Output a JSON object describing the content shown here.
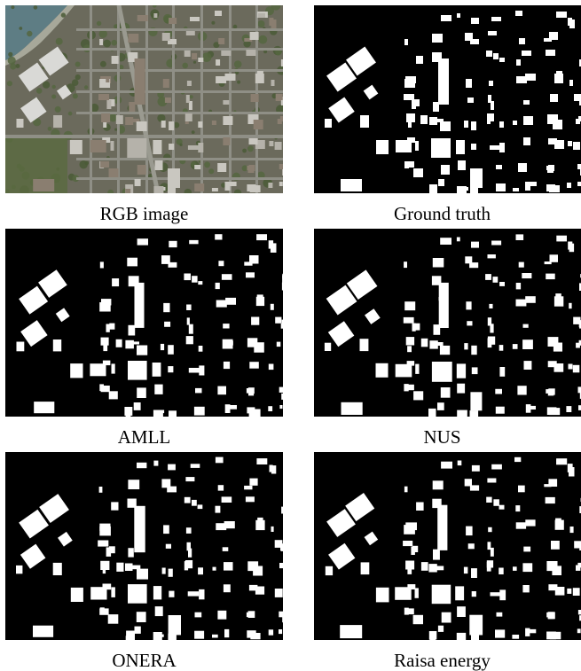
{
  "figure": {
    "panels": [
      {
        "caption": "RGB image",
        "kind": "rgb"
      },
      {
        "caption": "Ground truth",
        "kind": "mask"
      },
      {
        "caption": "AMLL",
        "kind": "mask"
      },
      {
        "caption": "NUS",
        "kind": "mask"
      },
      {
        "caption": "ONERA",
        "kind": "mask"
      },
      {
        "caption": "Raisa energy",
        "kind": "mask"
      }
    ]
  },
  "colors": {
    "mask_background": "#000000",
    "mask_building": "#ffffff",
    "rgb_vegetation": "#55663f",
    "rgb_water": "#5e7d84",
    "rgb_roof_light": "#d9d9d6",
    "rgb_road": "#8f8f86"
  }
}
